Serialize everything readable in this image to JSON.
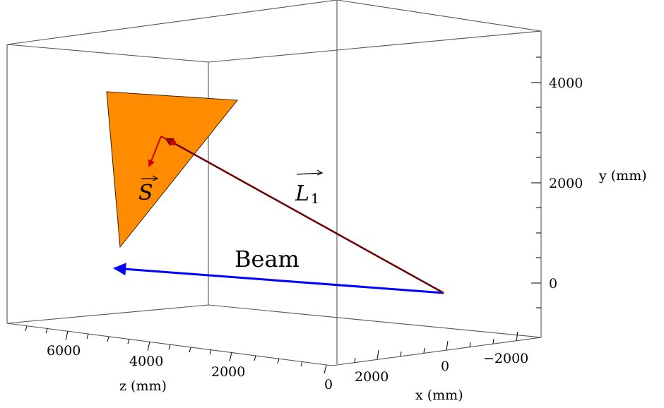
{
  "figure": {
    "labels": {
      "beam": "Beam",
      "L1": "L",
      "L1_sub": "1",
      "S": "S"
    },
    "axes": {
      "y": {
        "label": "y (mm)",
        "ticks": [
          "4000",
          "2000",
          "0"
        ]
      },
      "z": {
        "label": "z (mm)",
        "ticks": [
          "6000",
          "4000",
          "2000",
          "0"
        ]
      },
      "x": {
        "label": "x (mm)",
        "ticks": [
          "2000",
          "0",
          "−2000"
        ]
      }
    },
    "colors": {
      "panel": "#FF8C00",
      "beam": "#0000FF",
      "L1": "#6B0000",
      "S": "#CC0000",
      "box": "#555555"
    }
  }
}
